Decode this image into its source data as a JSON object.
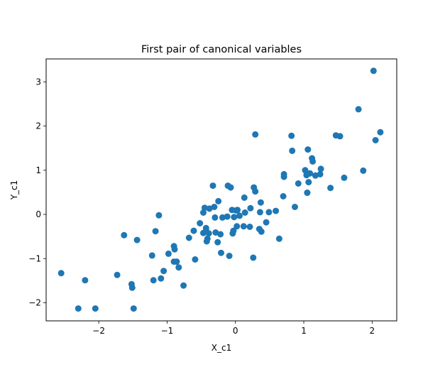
{
  "chart_data": {
    "type": "scatter",
    "title": "First pair of canonical variables",
    "xlabel": "X_c1",
    "ylabel": "Y_c1",
    "xlim": [
      -2.77,
      2.36
    ],
    "ylim": [
      -2.41,
      3.52
    ],
    "xticks": [
      -2,
      -1,
      0,
      1,
      2
    ],
    "yticks": [
      -2,
      -1,
      0,
      1,
      2,
      3
    ],
    "grid": false,
    "marker_color": "#1f77b4",
    "points": [
      [
        -2.55,
        -1.33
      ],
      [
        -2.3,
        -2.13
      ],
      [
        -2.2,
        -1.49
      ],
      [
        -2.05,
        -2.13
      ],
      [
        -1.73,
        -1.37
      ],
      [
        -1.63,
        -0.47
      ],
      [
        -1.52,
        -1.58
      ],
      [
        -1.51,
        -1.66
      ],
      [
        -1.49,
        -2.13
      ],
      [
        -1.44,
        -0.58
      ],
      [
        -1.22,
        -0.93
      ],
      [
        -1.2,
        -1.49
      ],
      [
        -1.17,
        -0.38
      ],
      [
        -1.12,
        -0.02
      ],
      [
        -1.09,
        -1.45
      ],
      [
        -1.05,
        -1.28
      ],
      [
        -0.98,
        -0.89
      ],
      [
        -0.9,
        -0.72
      ],
      [
        -0.89,
        -0.79
      ],
      [
        -0.9,
        -1.07
      ],
      [
        -0.86,
        -1.07
      ],
      [
        -0.83,
        -1.2
      ],
      [
        -0.76,
        -1.61
      ],
      [
        -0.68,
        -0.53
      ],
      [
        -0.61,
        -0.37
      ],
      [
        -0.59,
        -1.02
      ],
      [
        -0.52,
        -0.2
      ],
      [
        -0.47,
        -0.42
      ],
      [
        -0.47,
        0.04
      ],
      [
        -0.45,
        0.15
      ],
      [
        -0.43,
        -0.31
      ],
      [
        -0.43,
        -0.37
      ],
      [
        -0.42,
        -0.61
      ],
      [
        -0.41,
        -0.55
      ],
      [
        -0.39,
        -0.43
      ],
      [
        -0.38,
        0.13
      ],
      [
        -0.33,
        0.65
      ],
      [
        -0.31,
        0.17
      ],
      [
        -0.3,
        -0.07
      ],
      [
        -0.29,
        -0.41
      ],
      [
        -0.26,
        -0.63
      ],
      [
        -0.25,
        0.3
      ],
      [
        -0.22,
        -0.45
      ],
      [
        -0.21,
        -0.87
      ],
      [
        -0.19,
        -0.07
      ],
      [
        -0.12,
        -0.05
      ],
      [
        -0.11,
        0.65
      ],
      [
        -0.09,
        -0.94
      ],
      [
        -0.07,
        0.61
      ],
      [
        -0.05,
        0.1
      ],
      [
        -0.04,
        -0.43
      ],
      [
        -0.03,
        -0.37
      ],
      [
        -0.02,
        -0.06
      ],
      [
        0.01,
        0.09
      ],
      [
        0.02,
        -0.27
      ],
      [
        0.03,
        0.1
      ],
      [
        0.06,
        -0.03
      ],
      [
        0.12,
        -0.27
      ],
      [
        0.13,
        0.38
      ],
      [
        0.14,
        0.04
      ],
      [
        0.21,
        -0.28
      ],
      [
        0.22,
        0.14
      ],
      [
        0.26,
        -0.98
      ],
      [
        0.27,
        0.61
      ],
      [
        0.29,
        0.52
      ],
      [
        0.29,
        1.81
      ],
      [
        0.35,
        -0.33
      ],
      [
        0.36,
        0.05
      ],
      [
        0.37,
        0.27
      ],
      [
        0.38,
        -0.39
      ],
      [
        0.45,
        -0.18
      ],
      [
        0.49,
        0.05
      ],
      [
        0.59,
        0.08
      ],
      [
        0.64,
        -0.55
      ],
      [
        0.7,
        0.41
      ],
      [
        0.71,
        0.85
      ],
      [
        0.71,
        0.91
      ],
      [
        0.82,
        1.78
      ],
      [
        0.83,
        1.44
      ],
      [
        0.87,
        0.17
      ],
      [
        0.92,
        0.7
      ],
      [
        1.02,
        1.0
      ],
      [
        1.04,
        0.89
      ],
      [
        1.05,
        0.49
      ],
      [
        1.05,
        0.49
      ],
      [
        1.06,
        1.47
      ],
      [
        1.07,
        0.73
      ],
      [
        1.09,
        0.93
      ],
      [
        1.12,
        1.27
      ],
      [
        1.13,
        1.2
      ],
      [
        1.17,
        0.88
      ],
      [
        1.24,
        0.91
      ],
      [
        1.25,
        1.03
      ],
      [
        1.39,
        0.6
      ],
      [
        1.47,
        1.79
      ],
      [
        1.53,
        1.77
      ],
      [
        1.59,
        0.83
      ],
      [
        1.8,
        2.38
      ],
      [
        1.87,
        0.99
      ],
      [
        2.02,
        3.25
      ],
      [
        2.05,
        1.68
      ],
      [
        2.12,
        1.86
      ]
    ]
  }
}
